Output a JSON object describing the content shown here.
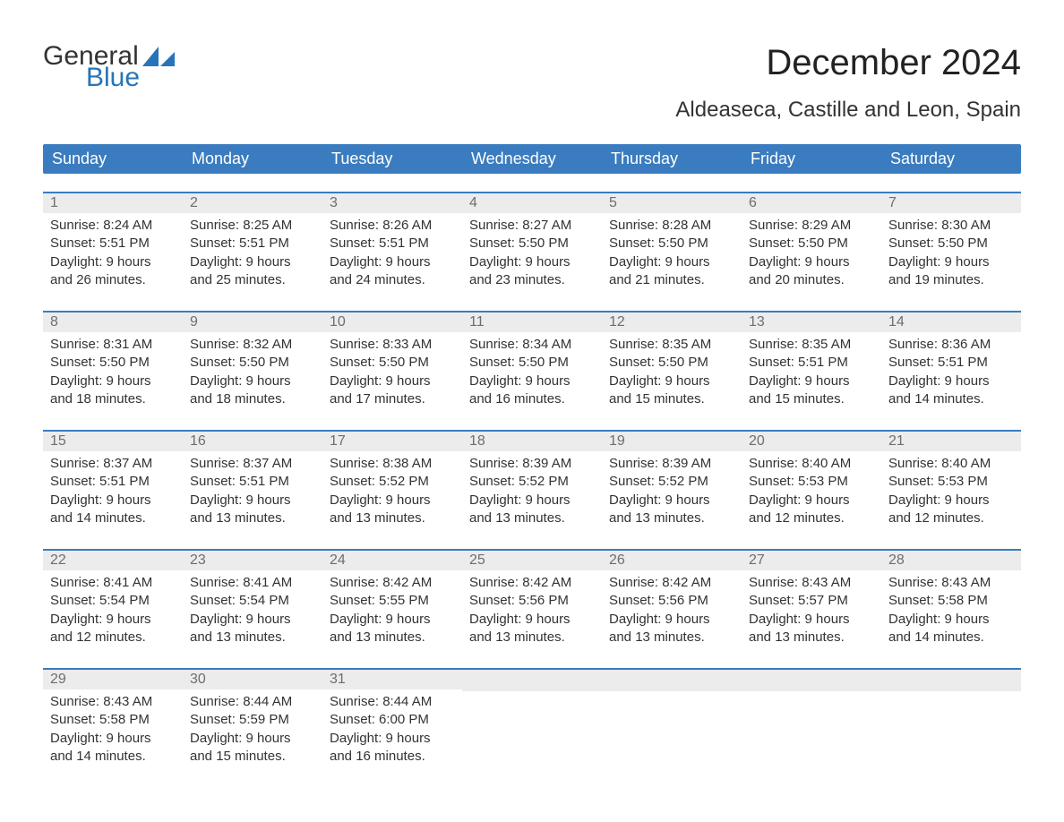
{
  "logo": {
    "word_general": "General",
    "word_blue": "Blue",
    "sail_color": "#2874b8"
  },
  "header": {
    "month_year": "December 2024",
    "location": "Aldeaseca, Castille and Leon, Spain"
  },
  "style": {
    "header_bg": "#3a7cbf",
    "header_fg": "#ffffff",
    "daynum_bg": "#ececec",
    "daynum_fg": "#6e6e6e",
    "body_fg": "#333333",
    "week_border": "#3a7cbf",
    "page_bg": "#ffffff",
    "month_title_fontsize": 40,
    "location_fontsize": 24,
    "weekday_fontsize": 18,
    "body_fontsize": 15
  },
  "weekdays": [
    "Sunday",
    "Monday",
    "Tuesday",
    "Wednesday",
    "Thursday",
    "Friday",
    "Saturday"
  ],
  "weeks": [
    [
      {
        "day": "1",
        "sunrise": "Sunrise: 8:24 AM",
        "sunset": "Sunset: 5:51 PM",
        "day1": "Daylight: 9 hours",
        "day2": "and 26 minutes."
      },
      {
        "day": "2",
        "sunrise": "Sunrise: 8:25 AM",
        "sunset": "Sunset: 5:51 PM",
        "day1": "Daylight: 9 hours",
        "day2": "and 25 minutes."
      },
      {
        "day": "3",
        "sunrise": "Sunrise: 8:26 AM",
        "sunset": "Sunset: 5:51 PM",
        "day1": "Daylight: 9 hours",
        "day2": "and 24 minutes."
      },
      {
        "day": "4",
        "sunrise": "Sunrise: 8:27 AM",
        "sunset": "Sunset: 5:50 PM",
        "day1": "Daylight: 9 hours",
        "day2": "and 23 minutes."
      },
      {
        "day": "5",
        "sunrise": "Sunrise: 8:28 AM",
        "sunset": "Sunset: 5:50 PM",
        "day1": "Daylight: 9 hours",
        "day2": "and 21 minutes."
      },
      {
        "day": "6",
        "sunrise": "Sunrise: 8:29 AM",
        "sunset": "Sunset: 5:50 PM",
        "day1": "Daylight: 9 hours",
        "day2": "and 20 minutes."
      },
      {
        "day": "7",
        "sunrise": "Sunrise: 8:30 AM",
        "sunset": "Sunset: 5:50 PM",
        "day1": "Daylight: 9 hours",
        "day2": "and 19 minutes."
      }
    ],
    [
      {
        "day": "8",
        "sunrise": "Sunrise: 8:31 AM",
        "sunset": "Sunset: 5:50 PM",
        "day1": "Daylight: 9 hours",
        "day2": "and 18 minutes."
      },
      {
        "day": "9",
        "sunrise": "Sunrise: 8:32 AM",
        "sunset": "Sunset: 5:50 PM",
        "day1": "Daylight: 9 hours",
        "day2": "and 18 minutes."
      },
      {
        "day": "10",
        "sunrise": "Sunrise: 8:33 AM",
        "sunset": "Sunset: 5:50 PM",
        "day1": "Daylight: 9 hours",
        "day2": "and 17 minutes."
      },
      {
        "day": "11",
        "sunrise": "Sunrise: 8:34 AM",
        "sunset": "Sunset: 5:50 PM",
        "day1": "Daylight: 9 hours",
        "day2": "and 16 minutes."
      },
      {
        "day": "12",
        "sunrise": "Sunrise: 8:35 AM",
        "sunset": "Sunset: 5:50 PM",
        "day1": "Daylight: 9 hours",
        "day2": "and 15 minutes."
      },
      {
        "day": "13",
        "sunrise": "Sunrise: 8:35 AM",
        "sunset": "Sunset: 5:51 PM",
        "day1": "Daylight: 9 hours",
        "day2": "and 15 minutes."
      },
      {
        "day": "14",
        "sunrise": "Sunrise: 8:36 AM",
        "sunset": "Sunset: 5:51 PM",
        "day1": "Daylight: 9 hours",
        "day2": "and 14 minutes."
      }
    ],
    [
      {
        "day": "15",
        "sunrise": "Sunrise: 8:37 AM",
        "sunset": "Sunset: 5:51 PM",
        "day1": "Daylight: 9 hours",
        "day2": "and 14 minutes."
      },
      {
        "day": "16",
        "sunrise": "Sunrise: 8:37 AM",
        "sunset": "Sunset: 5:51 PM",
        "day1": "Daylight: 9 hours",
        "day2": "and 13 minutes."
      },
      {
        "day": "17",
        "sunrise": "Sunrise: 8:38 AM",
        "sunset": "Sunset: 5:52 PM",
        "day1": "Daylight: 9 hours",
        "day2": "and 13 minutes."
      },
      {
        "day": "18",
        "sunrise": "Sunrise: 8:39 AM",
        "sunset": "Sunset: 5:52 PM",
        "day1": "Daylight: 9 hours",
        "day2": "and 13 minutes."
      },
      {
        "day": "19",
        "sunrise": "Sunrise: 8:39 AM",
        "sunset": "Sunset: 5:52 PM",
        "day1": "Daylight: 9 hours",
        "day2": "and 13 minutes."
      },
      {
        "day": "20",
        "sunrise": "Sunrise: 8:40 AM",
        "sunset": "Sunset: 5:53 PM",
        "day1": "Daylight: 9 hours",
        "day2": "and 12 minutes."
      },
      {
        "day": "21",
        "sunrise": "Sunrise: 8:40 AM",
        "sunset": "Sunset: 5:53 PM",
        "day1": "Daylight: 9 hours",
        "day2": "and 12 minutes."
      }
    ],
    [
      {
        "day": "22",
        "sunrise": "Sunrise: 8:41 AM",
        "sunset": "Sunset: 5:54 PM",
        "day1": "Daylight: 9 hours",
        "day2": "and 12 minutes."
      },
      {
        "day": "23",
        "sunrise": "Sunrise: 8:41 AM",
        "sunset": "Sunset: 5:54 PM",
        "day1": "Daylight: 9 hours",
        "day2": "and 13 minutes."
      },
      {
        "day": "24",
        "sunrise": "Sunrise: 8:42 AM",
        "sunset": "Sunset: 5:55 PM",
        "day1": "Daylight: 9 hours",
        "day2": "and 13 minutes."
      },
      {
        "day": "25",
        "sunrise": "Sunrise: 8:42 AM",
        "sunset": "Sunset: 5:56 PM",
        "day1": "Daylight: 9 hours",
        "day2": "and 13 minutes."
      },
      {
        "day": "26",
        "sunrise": "Sunrise: 8:42 AM",
        "sunset": "Sunset: 5:56 PM",
        "day1": "Daylight: 9 hours",
        "day2": "and 13 minutes."
      },
      {
        "day": "27",
        "sunrise": "Sunrise: 8:43 AM",
        "sunset": "Sunset: 5:57 PM",
        "day1": "Daylight: 9 hours",
        "day2": "and 13 minutes."
      },
      {
        "day": "28",
        "sunrise": "Sunrise: 8:43 AM",
        "sunset": "Sunset: 5:58 PM",
        "day1": "Daylight: 9 hours",
        "day2": "and 14 minutes."
      }
    ],
    [
      {
        "day": "29",
        "sunrise": "Sunrise: 8:43 AM",
        "sunset": "Sunset: 5:58 PM",
        "day1": "Daylight: 9 hours",
        "day2": "and 14 minutes."
      },
      {
        "day": "30",
        "sunrise": "Sunrise: 8:44 AM",
        "sunset": "Sunset: 5:59 PM",
        "day1": "Daylight: 9 hours",
        "day2": "and 15 minutes."
      },
      {
        "day": "31",
        "sunrise": "Sunrise: 8:44 AM",
        "sunset": "Sunset: 6:00 PM",
        "day1": "Daylight: 9 hours",
        "day2": "and 16 minutes."
      },
      {
        "day": "",
        "sunrise": "",
        "sunset": "",
        "day1": "",
        "day2": ""
      },
      {
        "day": "",
        "sunrise": "",
        "sunset": "",
        "day1": "",
        "day2": ""
      },
      {
        "day": "",
        "sunrise": "",
        "sunset": "",
        "day1": "",
        "day2": ""
      },
      {
        "day": "",
        "sunrise": "",
        "sunset": "",
        "day1": "",
        "day2": ""
      }
    ]
  ]
}
